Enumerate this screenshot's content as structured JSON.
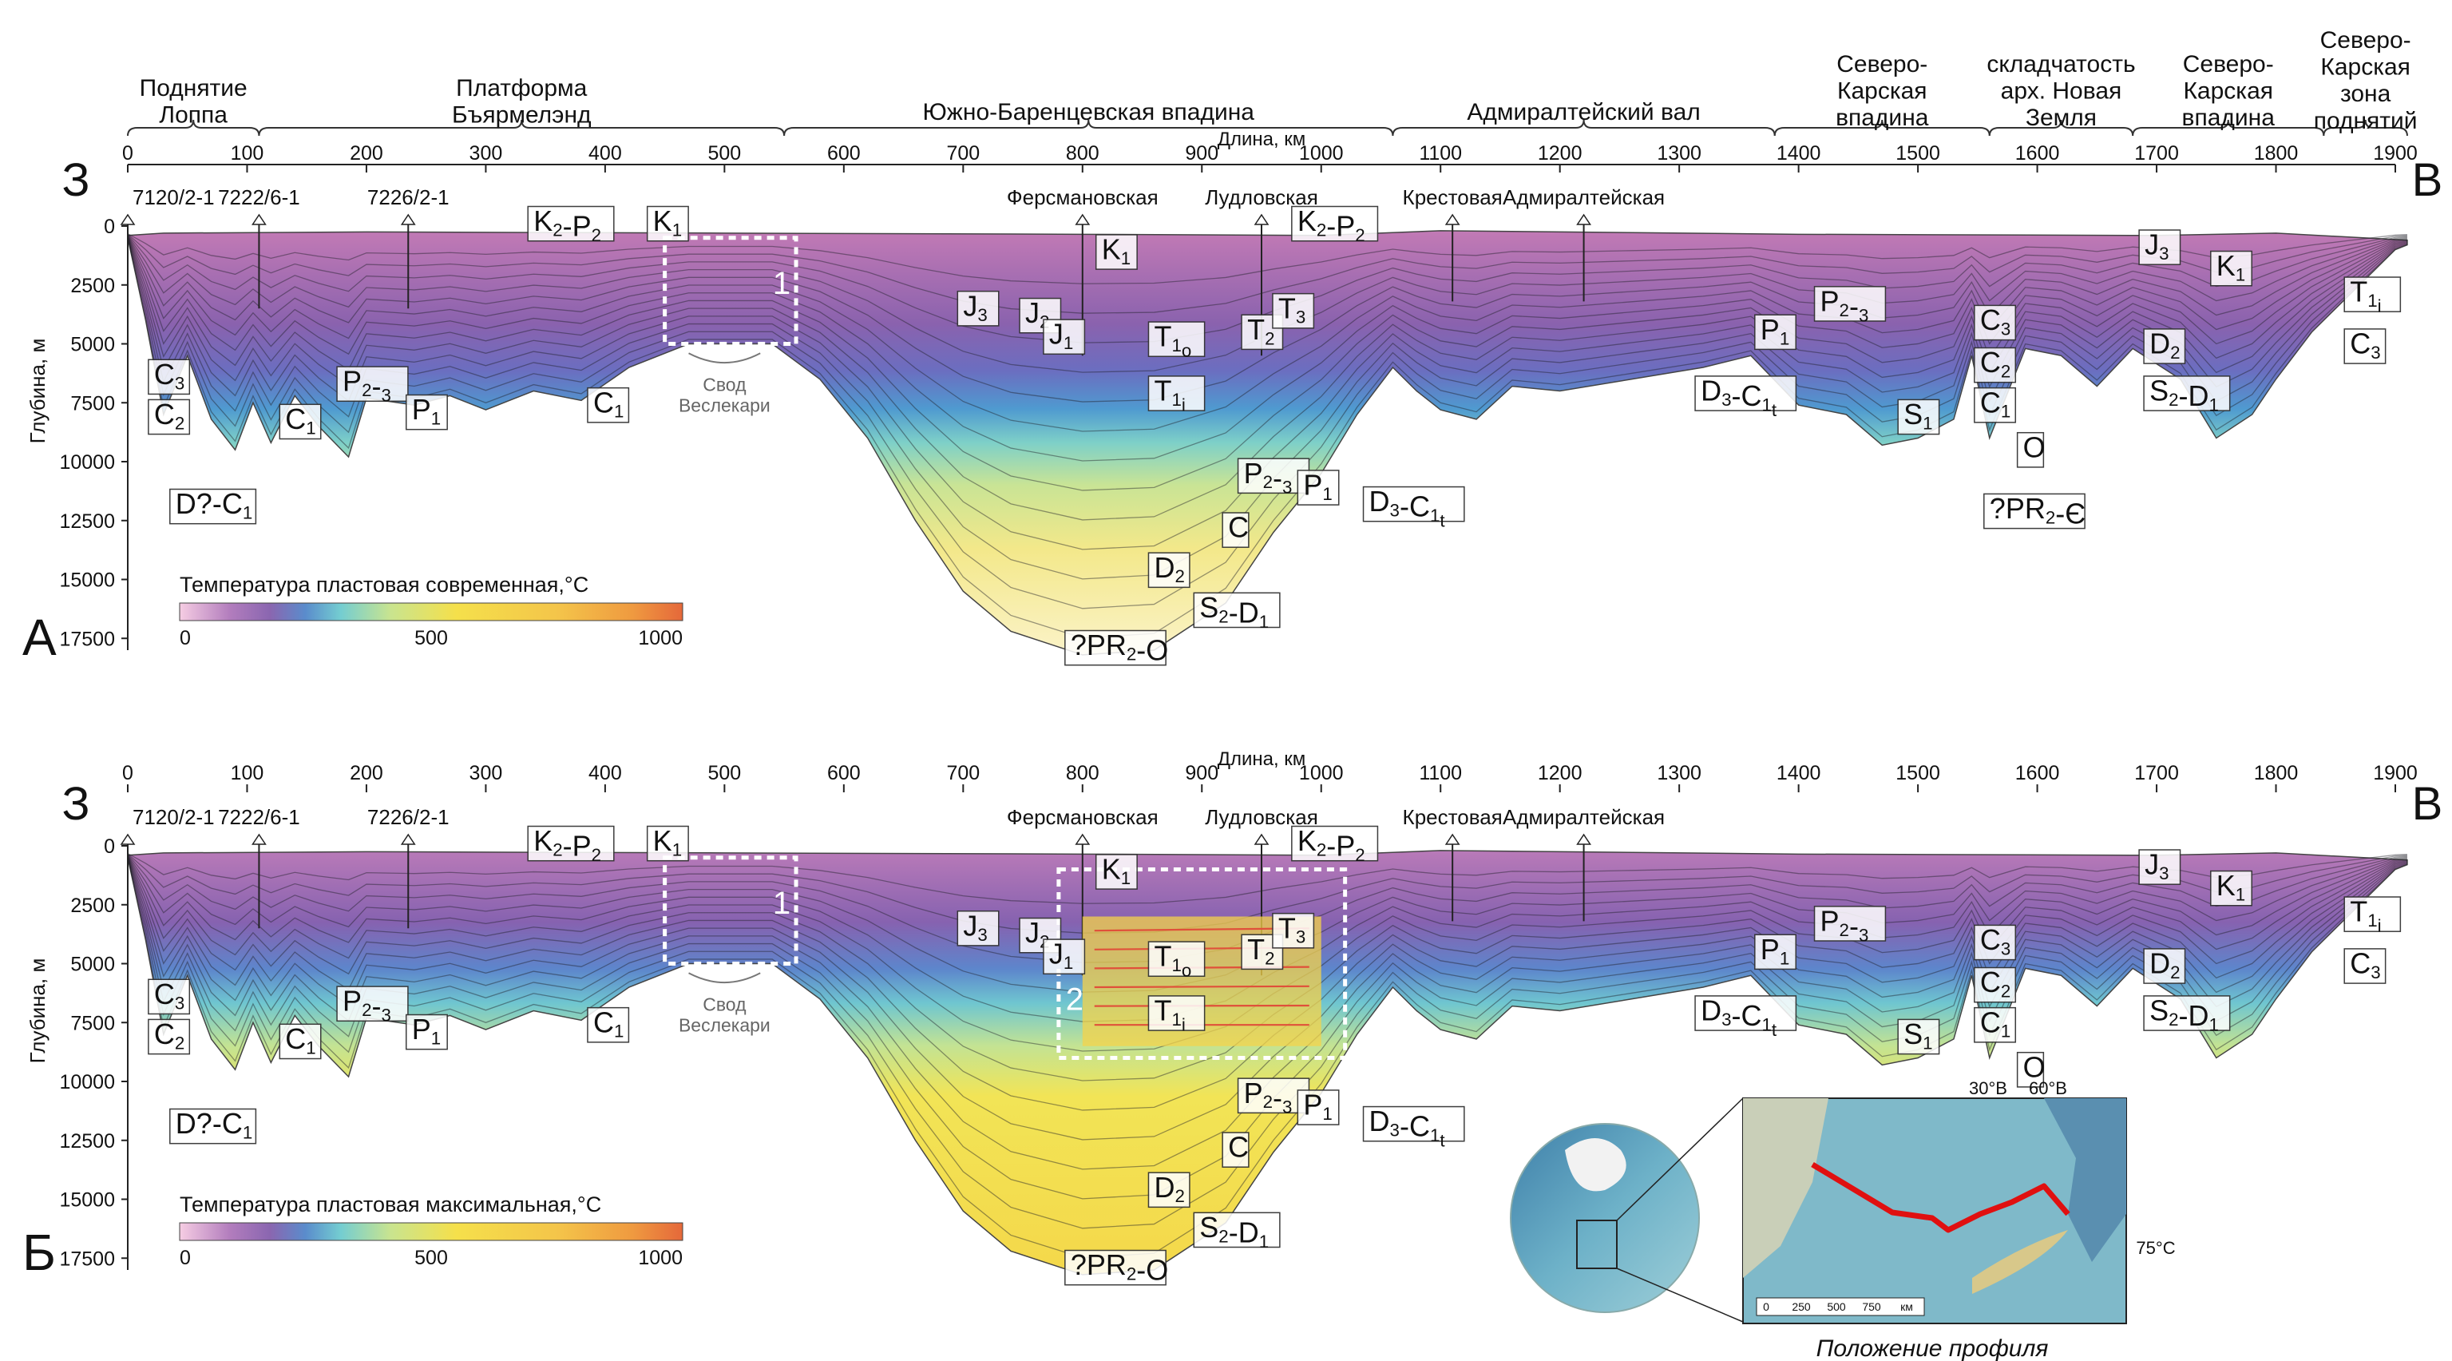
{
  "regions": [
    {
      "label": "Поднятие\nЛоппа"
    },
    {
      "label": "Платформа\nБъярмелэнд"
    },
    {
      "label": "Южно-Баренцевская впадина"
    },
    {
      "label": "Адмиралтейский вал"
    },
    {
      "label": "Северо-\nКарская\nвпадина"
    },
    {
      "label": "складчатость\nарх. Новая\nЗемля"
    },
    {
      "label": "Северо-\nКарская\nвпадина"
    },
    {
      "label": "Северо-\nКарская\nзона\nподнятий"
    }
  ],
  "axis": {
    "x_title": "Длина, км",
    "x_ticks": [
      "0",
      "100",
      "200",
      "300",
      "400",
      "500",
      "600",
      "700",
      "800",
      "900",
      "1000",
      "1100",
      "1200",
      "1300",
      "1400",
      "1500",
      "1600",
      "1700",
      "1800",
      "1900"
    ],
    "y_title": "Глубина, м",
    "y_ticks": [
      "0",
      "2500",
      "5000",
      "7500",
      "10000",
      "12500",
      "15000",
      "17500"
    ]
  },
  "sides": {
    "left": "З",
    "right": "В"
  },
  "panels": [
    {
      "letter": "А",
      "colorbar_title": "Температура пластовая современная,°С",
      "colorbar_ticks": [
        "0",
        "500",
        "1000"
      ],
      "wells": [
        "7120/2-1",
        "7222/6-1",
        "7226/2-1",
        "Ферсмановская",
        "Лудловская",
        "Крестовая",
        "Адмиралтейская"
      ],
      "box_label": "1",
      "svod_label": "Свод\nВеслекари"
    },
    {
      "letter": "Б",
      "colorbar_title": "Температура пластовая максимальная,°С",
      "colorbar_ticks": [
        "0",
        "500",
        "1000"
      ],
      "wells": [
        "7120/2-1",
        "7222/6-1",
        "7226/2-1",
        "Ферсмановская",
        "Лудловская",
        "Крестовая",
        "Адмиралтейская"
      ],
      "box_label": "1",
      "box2_label": "2",
      "svod_label": "Свод\nВеслекари"
    }
  ],
  "strata_labels": {
    "K2P2": "K2-P2",
    "K1": "K1",
    "J3": "J3",
    "J2": "J2",
    "J1": "J1",
    "T1o": "T1o",
    "T1i": "T1i",
    "T2": "T2",
    "T3": "T3",
    "P23": "P2-3",
    "P1": "P1",
    "C3": "C3",
    "C2": "C2",
    "C1": "C1",
    "DC1": "D?-C1",
    "D3C1t": "D3-C1t",
    "C": "C",
    "D2": "D2",
    "S2D1": "S2-D1",
    "PRO": "?PR2-O",
    "S1": "S1",
    "O": "O",
    "PRE": "?PR2-Є"
  },
  "inset": {
    "caption": "Положение профиля",
    "lon1": "30°В",
    "lon2": "60°В",
    "lat": "75°С",
    "scale": [
      "0",
      "250",
      "500",
      "750",
      "км"
    ]
  },
  "colors": {
    "profile_line": "#e01010",
    "ramp": [
      "#f3c2dd",
      "#a86fb8",
      "#7c5aa8",
      "#4d8fc8",
      "#6ccbd0",
      "#b9e29a",
      "#f5e04a",
      "#f5c04a",
      "#f0a040",
      "#e86a38"
    ]
  }
}
